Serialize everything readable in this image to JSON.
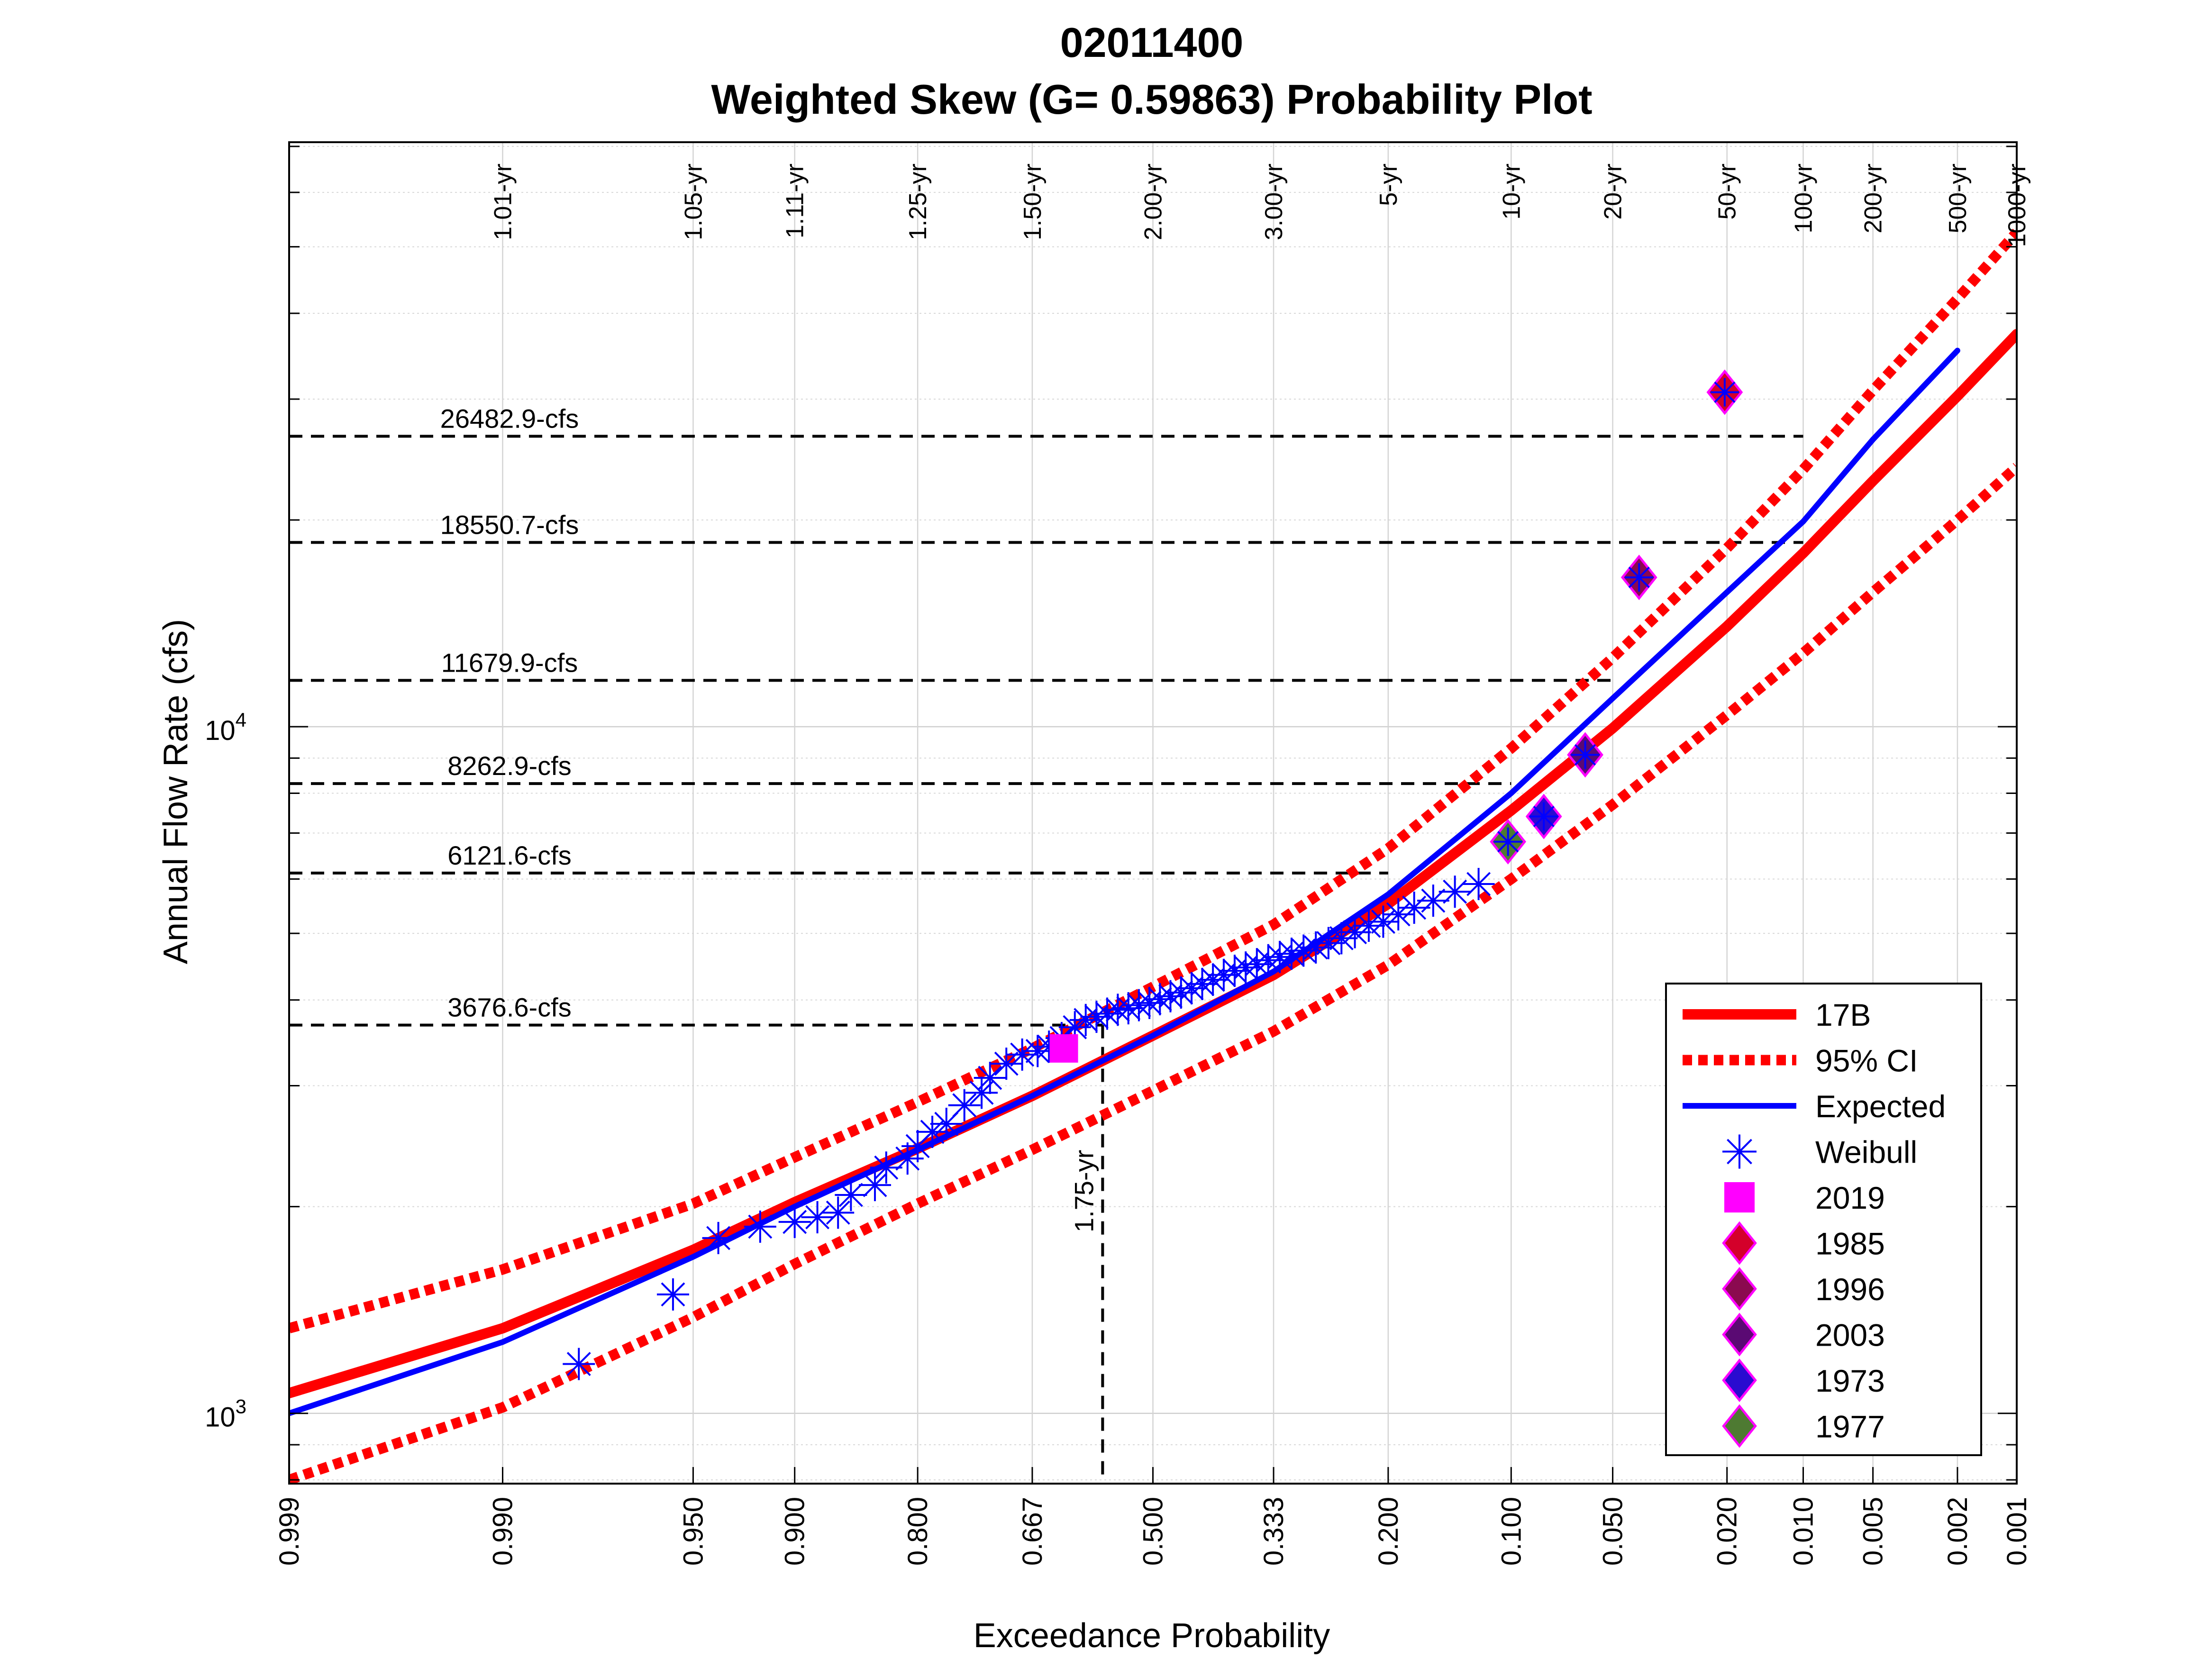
{
  "chart_data": {
    "type": "scatter",
    "title": "02011400",
    "subtitle": "Weighted Skew (G= 0.59863) Probability Plot",
    "xlabel": "Exceedance Probability",
    "ylabel": "Annual Flow Rate (cfs)",
    "x_scale": "normal-probability, reversed",
    "y_scale": "log",
    "xlim": [
      0.999,
      0.001
    ],
    "ylim": [
      790,
      71000
    ],
    "grid": true,
    "legend_position": "bottom-right",
    "x_ticks": [
      {
        "p": 0.999,
        "label": "0.999"
      },
      {
        "p": 0.99,
        "label": "0.990"
      },
      {
        "p": 0.95,
        "label": "0.950"
      },
      {
        "p": 0.9,
        "label": "0.900"
      },
      {
        "p": 0.8,
        "label": "0.800"
      },
      {
        "p": 0.667,
        "label": "0.667"
      },
      {
        "p": 0.5,
        "label": "0.500"
      },
      {
        "p": 0.333,
        "label": "0.333"
      },
      {
        "p": 0.2,
        "label": "0.200"
      },
      {
        "p": 0.1,
        "label": "0.100"
      },
      {
        "p": 0.05,
        "label": "0.050"
      },
      {
        "p": 0.02,
        "label": "0.020"
      },
      {
        "p": 0.01,
        "label": "0.010"
      },
      {
        "p": 0.005,
        "label": "0.005"
      },
      {
        "p": 0.002,
        "label": "0.002"
      },
      {
        "p": 0.001,
        "label": "0.001"
      }
    ],
    "return_period_labels": [
      {
        "p": 0.99,
        "label": "1.01-yr"
      },
      {
        "p": 0.95,
        "label": "1.05-yr"
      },
      {
        "p": 0.9,
        "label": "1.11-yr"
      },
      {
        "p": 0.8,
        "label": "1.25-yr"
      },
      {
        "p": 0.667,
        "label": "1.50-yr"
      },
      {
        "p": 0.5,
        "label": "2.00-yr"
      },
      {
        "p": 0.333,
        "label": "3.00-yr"
      },
      {
        "p": 0.2,
        "label": "5-yr"
      },
      {
        "p": 0.1,
        "label": "10-yr"
      },
      {
        "p": 0.05,
        "label": "20-yr"
      },
      {
        "p": 0.02,
        "label": "50-yr"
      },
      {
        "p": 0.01,
        "label": "100-yr"
      },
      {
        "p": 0.005,
        "label": "200-yr"
      },
      {
        "p": 0.002,
        "label": "500-yr"
      },
      {
        "p": 0.001,
        "label": "1000-yr"
      }
    ],
    "y_ticks": [
      {
        "value": 1000,
        "base": "10",
        "exp": "3"
      },
      {
        "value": 10000,
        "base": "10",
        "exp": "4"
      }
    ],
    "reference_flows": [
      {
        "value": 26482.9,
        "label": "26482.9-cfs",
        "p_end": 0.01
      },
      {
        "value": 18550.7,
        "label": "18550.7-cfs",
        "p_end": 0.01
      },
      {
        "value": 11679.9,
        "label": "11679.9-cfs",
        "p_end": 0.05
      },
      {
        "value": 8262.9,
        "label": "8262.9-cfs",
        "p_end": 0.1
      },
      {
        "value": 6121.6,
        "label": "6121.6-cfs",
        "p_end": 0.2
      },
      {
        "value": 3676.6,
        "label": "3676.6-cfs",
        "p_end": 0.5714
      }
    ],
    "event_marker": {
      "p": 0.5714,
      "value": 3676.6,
      "label": "1.75-yr"
    },
    "series": [
      {
        "name": "17B",
        "color": "#ff0000",
        "style": "solid",
        "points": [
          [
            0.999,
            1070
          ],
          [
            0.99,
            1330
          ],
          [
            0.95,
            1730
          ],
          [
            0.9,
            2030
          ],
          [
            0.8,
            2430
          ],
          [
            0.667,
            2900
          ],
          [
            0.5,
            3550
          ],
          [
            0.333,
            4350
          ],
          [
            0.2,
            5520
          ],
          [
            0.1,
            7550
          ],
          [
            0.05,
            9950
          ],
          [
            0.02,
            14000
          ],
          [
            0.01,
            17900
          ],
          [
            0.005,
            22800
          ],
          [
            0.002,
            30300
          ],
          [
            0.001,
            37300
          ]
        ]
      },
      {
        "name": "95% CI",
        "color": "#ff0000",
        "style": "dotted",
        "points": [
          [
            0.999,
            1330
          ],
          [
            0.99,
            1620
          ],
          [
            0.95,
            2020
          ],
          [
            0.9,
            2360
          ],
          [
            0.8,
            2840
          ],
          [
            0.667,
            3400
          ],
          [
            0.5,
            4180
          ],
          [
            0.333,
            5150
          ],
          [
            0.2,
            6650
          ],
          [
            0.1,
            9300
          ],
          [
            0.05,
            12600
          ],
          [
            0.02,
            18200
          ],
          [
            0.01,
            23700
          ],
          [
            0.005,
            30900
          ],
          [
            0.002,
            42000
          ],
          [
            0.001,
            52500
          ]
        ]
      },
      {
        "name": "95% CI (lower)",
        "color": "#ff0000",
        "style": "dotted",
        "points": [
          [
            0.999,
            800
          ],
          [
            0.99,
            1020
          ],
          [
            0.95,
            1380
          ],
          [
            0.9,
            1650
          ],
          [
            0.8,
            2020
          ],
          [
            0.667,
            2420
          ],
          [
            0.5,
            2950
          ],
          [
            0.333,
            3600
          ],
          [
            0.2,
            4500
          ],
          [
            0.1,
            6000
          ],
          [
            0.05,
            7700
          ],
          [
            0.02,
            10400
          ],
          [
            0.01,
            12800
          ],
          [
            0.005,
            15700
          ],
          [
            0.002,
            20000
          ],
          [
            0.001,
            23900
          ]
        ]
      },
      {
        "name": "Expected",
        "color": "#0000ff",
        "style": "solid",
        "points": [
          [
            0.999,
            1000
          ],
          [
            0.99,
            1270
          ],
          [
            0.95,
            1690
          ],
          [
            0.9,
            2000
          ],
          [
            0.8,
            2420
          ],
          [
            0.667,
            2900
          ],
          [
            0.5,
            3550
          ],
          [
            0.333,
            4400
          ],
          [
            0.2,
            5700
          ],
          [
            0.1,
            8000
          ],
          [
            0.05,
            11000
          ],
          [
            0.02,
            15700
          ],
          [
            0.01,
            19900
          ],
          [
            0.005,
            26200
          ],
          [
            0.002,
            35300
          ]
        ]
      },
      {
        "name": "Weibull",
        "color": "#0000ff",
        "marker": "asterisk",
        "points": [
          [
            0.98,
            1180
          ],
          [
            0.957,
            1490
          ],
          [
            0.94,
            1800
          ],
          [
            0.92,
            1870
          ],
          [
            0.9,
            1900
          ],
          [
            0.885,
            1930
          ],
          [
            0.87,
            1960
          ],
          [
            0.86,
            2080
          ],
          [
            0.84,
            2150
          ],
          [
            0.83,
            2280
          ],
          [
            0.81,
            2350
          ],
          [
            0.8,
            2450
          ],
          [
            0.785,
            2570
          ],
          [
            0.77,
            2640
          ],
          [
            0.75,
            2810
          ],
          [
            0.73,
            2930
          ],
          [
            0.72,
            3080
          ],
          [
            0.7,
            3230
          ],
          [
            0.68,
            3330
          ],
          [
            0.66,
            3370
          ],
          [
            0.645,
            3420
          ],
          [
            0.628,
            3520
          ],
          [
            0.61,
            3650
          ],
          [
            0.595,
            3740
          ],
          [
            0.58,
            3780
          ],
          [
            0.565,
            3820
          ],
          [
            0.55,
            3870
          ],
          [
            0.535,
            3890
          ],
          [
            0.52,
            3930
          ],
          [
            0.505,
            3960
          ],
          [
            0.49,
            4010
          ],
          [
            0.475,
            4050
          ],
          [
            0.46,
            4100
          ],
          [
            0.445,
            4160
          ],
          [
            0.43,
            4220
          ],
          [
            0.415,
            4280
          ],
          [
            0.4,
            4350
          ],
          [
            0.385,
            4410
          ],
          [
            0.37,
            4460
          ],
          [
            0.355,
            4510
          ],
          [
            0.34,
            4570
          ],
          [
            0.325,
            4620
          ],
          [
            0.31,
            4670
          ],
          [
            0.295,
            4720
          ],
          [
            0.28,
            4770
          ],
          [
            0.265,
            4840
          ],
          [
            0.25,
            4920
          ],
          [
            0.235,
            5020
          ],
          [
            0.22,
            5130
          ],
          [
            0.205,
            5200
          ],
          [
            0.19,
            5330
          ],
          [
            0.175,
            5450
          ],
          [
            0.158,
            5580
          ],
          [
            0.14,
            5750
          ],
          [
            0.122,
            5900
          ]
        ]
      },
      {
        "name": "2019",
        "color": "#ff00ff",
        "marker": "square",
        "points": [
          [
            0.625,
            3400
          ]
        ]
      },
      {
        "name": "1985",
        "color": "#d4002a",
        "marker": "diamond",
        "points": [
          [
            0.0204,
            30700
          ]
        ]
      },
      {
        "name": "1996",
        "color": "#8b0a50",
        "marker": "diamond",
        "points": [
          [
            0.041,
            16500
          ]
        ]
      },
      {
        "name": "2003",
        "color": "#5a0a73",
        "marker": "diamond",
        "points": [
          [
            0.061,
            9100
          ]
        ]
      },
      {
        "name": "1973",
        "color": "#2a0bd0",
        "marker": "diamond",
        "points": [
          [
            0.081,
            7400
          ]
        ]
      },
      {
        "name": "1977",
        "color": "#4e7a32",
        "marker": "diamond",
        "points": [
          [
            0.102,
            6800
          ]
        ]
      }
    ],
    "legend": [
      {
        "label": "17B",
        "kind": "line-solid",
        "color": "#ff0000"
      },
      {
        "label": "95% CI",
        "kind": "line-dotted",
        "color": "#ff0000"
      },
      {
        "label": "Expected",
        "kind": "line-solid-thin",
        "color": "#0000ff"
      },
      {
        "label": "Weibull",
        "kind": "asterisk",
        "color": "#0000ff"
      },
      {
        "label": "2019",
        "kind": "square",
        "color": "#ff00ff"
      },
      {
        "label": "1985",
        "kind": "diamond",
        "color": "#d4002a"
      },
      {
        "label": "1996",
        "kind": "diamond",
        "color": "#8b0a50"
      },
      {
        "label": "2003",
        "kind": "diamond",
        "color": "#5a0a73"
      },
      {
        "label": "1973",
        "kind": "diamond",
        "color": "#2a0bd0"
      },
      {
        "label": "1977",
        "kind": "diamond",
        "color": "#4e7a32"
      }
    ]
  }
}
